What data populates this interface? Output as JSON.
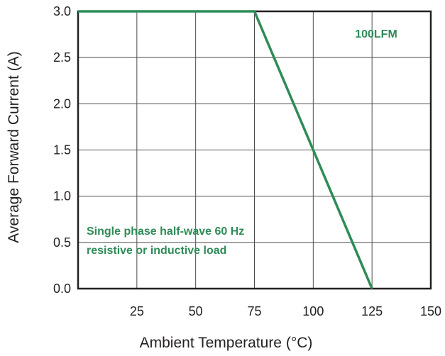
{
  "chart_data": {
    "type": "line",
    "title": "",
    "xlabel": "Ambient  Temperature (°C)",
    "ylabel": "Average Forward Current (A)",
    "xlim": [
      0,
      150
    ],
    "ylim": [
      0,
      3.0
    ],
    "x_ticks": [
      25,
      50,
      75,
      100,
      125,
      150
    ],
    "x_tick_labels": [
      "25",
      "50",
      "75",
      "100",
      "125",
      "150"
    ],
    "y_ticks": [
      0,
      0.5,
      1.0,
      1.5,
      2.0,
      2.5,
      3.0
    ],
    "y_tick_labels": [
      "0.0",
      "0.5",
      "1.0",
      "1.5",
      "2.0",
      "2.5",
      "3.0"
    ],
    "grid": true,
    "series": [
      {
        "x": [
          0,
          75,
          125
        ],
        "y": [
          3.0,
          3.0,
          0.0
        ],
        "color": "#2e8b57"
      }
    ],
    "annotations": [
      {
        "text": "100LFM",
        "color": "#2e8b57"
      },
      {
        "text": "Single phase half-wave 60 Hz",
        "color": "#2e8b57"
      },
      {
        "text": "resistive or inductive load",
        "color": "#2e8b57"
      }
    ]
  }
}
